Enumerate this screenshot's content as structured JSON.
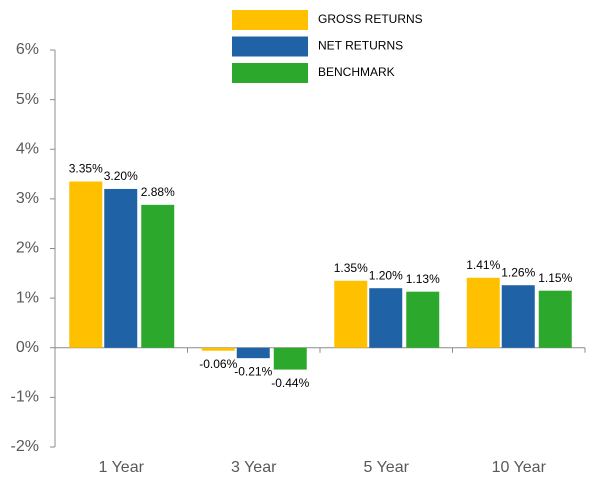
{
  "chart_data": {
    "type": "bar",
    "categories": [
      "1 Year",
      "3 Year",
      "5 Year",
      "10 Year"
    ],
    "series": [
      {
        "name": "GROSS RETURNS",
        "color": "#ffc000",
        "values": [
          3.35,
          -0.06,
          1.35,
          1.41
        ],
        "value_labels": [
          "3.35%",
          "-0.06%",
          "1.35%",
          "1.41%"
        ]
      },
      {
        "name": "NET RETURNS",
        "color": "#1f63a6",
        "values": [
          3.2,
          -0.21,
          1.2,
          1.26
        ],
        "value_labels": [
          "3.20%",
          "-0.21%",
          "1.20%",
          "1.26%"
        ]
      },
      {
        "name": "BENCHMARK",
        "color": "#2ca82c",
        "values": [
          2.88,
          -0.44,
          1.13,
          1.15
        ],
        "value_labels": [
          "2.88%",
          "-0.44%",
          "1.13%",
          "1.15%"
        ]
      }
    ],
    "ylim": [
      -2,
      6
    ],
    "yticks": [
      {
        "value": -2,
        "label": "-2%"
      },
      {
        "value": -1,
        "label": "-1%"
      },
      {
        "value": 0,
        "label": "0%"
      },
      {
        "value": 1,
        "label": "1%"
      },
      {
        "value": 2,
        "label": "2%"
      },
      {
        "value": 3,
        "label": "3%"
      },
      {
        "value": 4,
        "label": "4%"
      },
      {
        "value": 5,
        "label": "5%"
      },
      {
        "value": 6,
        "label": "6%"
      }
    ],
    "legend": "top"
  }
}
